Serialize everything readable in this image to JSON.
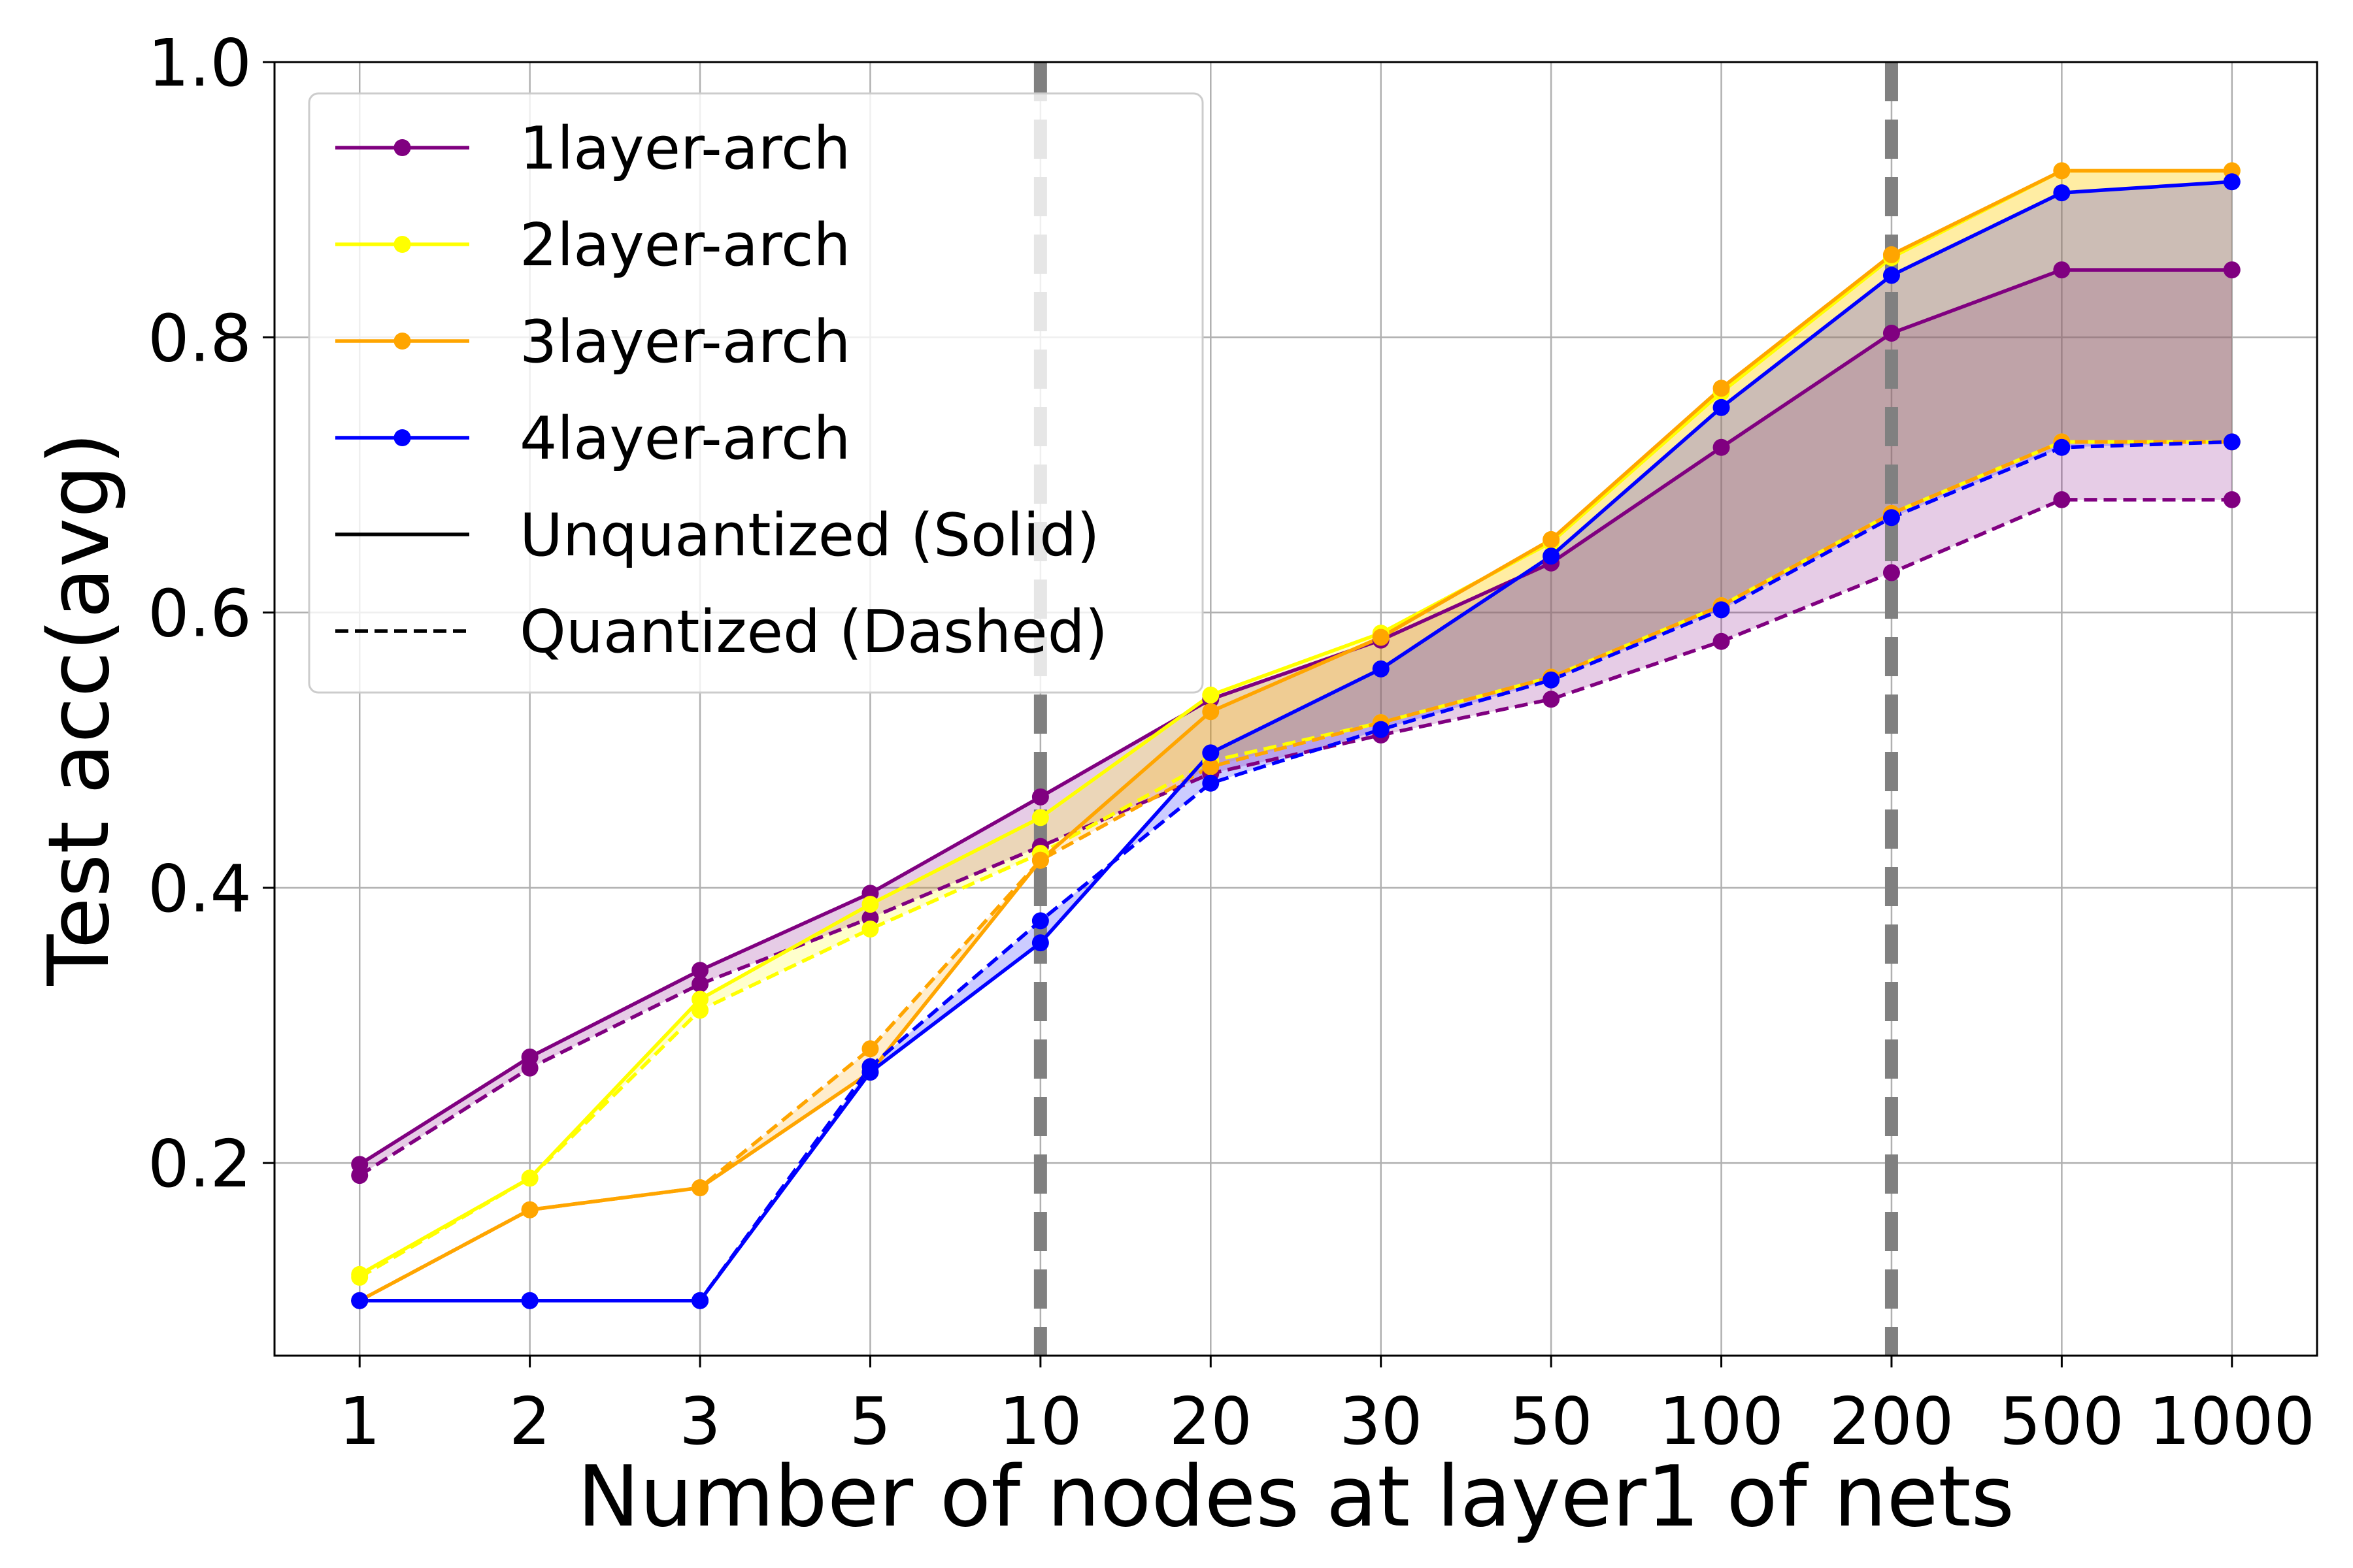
{
  "chart_data": {
    "type": "line",
    "title": "",
    "xlabel": "Number of nodes at layer1 of nets",
    "ylabel": "Test acc(avg)",
    "x_categories": [
      "1",
      "2",
      "3",
      "5",
      "10",
      "20",
      "30",
      "50",
      "100",
      "200",
      "500",
      "1000"
    ],
    "ylim": [
      0.06,
      1.0
    ],
    "y_ticks": [
      "0.2",
      "0.4",
      "0.6",
      "0.8",
      "1.0"
    ],
    "y_tick_values": [
      0.2,
      0.4,
      0.6,
      0.8,
      1.0
    ],
    "grid": true,
    "legend_placement": "top-left",
    "vertical_reference_lines": [
      "10",
      "200"
    ],
    "series": [
      {
        "name": "1layer-arch",
        "color": "#800080",
        "unquantized": [
          0.199,
          0.277,
          0.34,
          0.396,
          0.466,
          0.537,
          0.58,
          0.636,
          0.72,
          0.803,
          0.849,
          0.849
        ],
        "quantized": [
          0.191,
          0.269,
          0.33,
          0.378,
          0.43,
          0.483,
          0.511,
          0.537,
          0.579,
          0.629,
          0.682,
          0.682
        ]
      },
      {
        "name": "2layer-arch",
        "color": "#FFFF00",
        "unquantized": [
          0.119,
          0.189,
          0.319,
          0.388,
          0.451,
          0.54,
          0.585,
          0.651,
          0.76,
          0.858,
          0.921,
          0.921
        ],
        "quantized": [
          0.117,
          0.189,
          0.311,
          0.37,
          0.425,
          0.492,
          0.52,
          0.553,
          0.605,
          0.672,
          0.724,
          0.724
        ]
      },
      {
        "name": "3layer-arch",
        "color": "#FFA500",
        "unquantized": [
          0.1,
          0.166,
          0.182,
          0.266,
          0.42,
          0.528,
          0.582,
          0.653,
          0.763,
          0.86,
          0.921,
          0.921
        ],
        "quantized": [
          0.1,
          0.166,
          0.182,
          0.283,
          0.42,
          0.488,
          0.52,
          0.553,
          0.605,
          0.672,
          0.724,
          0.724
        ]
      },
      {
        "name": "4layer-arch",
        "color": "#0000FF",
        "unquantized": [
          0.1,
          0.1,
          0.1,
          0.266,
          0.36,
          0.498,
          0.559,
          0.641,
          0.749,
          0.845,
          0.905,
          0.913
        ],
        "quantized": [
          0.1,
          0.1,
          0.1,
          0.27,
          0.376,
          0.476,
          0.515,
          0.551,
          0.602,
          0.669,
          0.72,
          0.724
        ]
      }
    ],
    "legend_extra": [
      {
        "label": "Unquantized (Solid)",
        "style": "solid"
      },
      {
        "label": "Quantized (Dashed)",
        "style": "dashed"
      }
    ]
  }
}
